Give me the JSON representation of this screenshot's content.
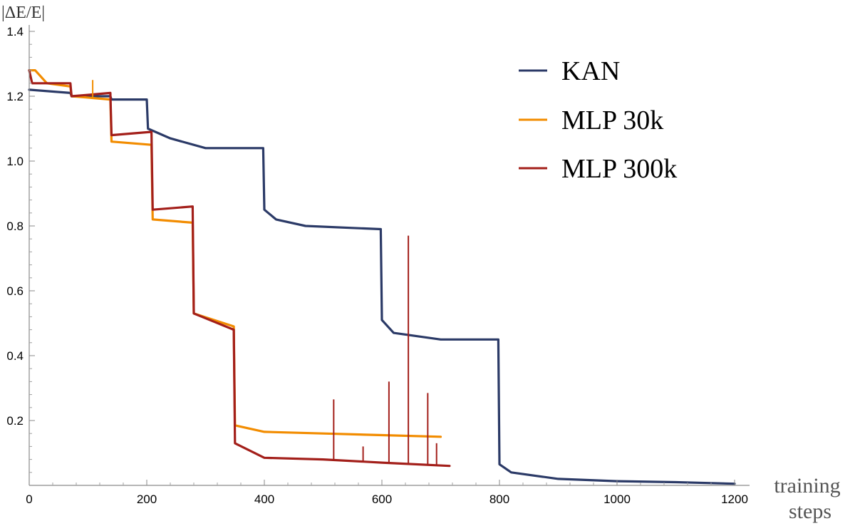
{
  "chart_data": {
    "type": "line",
    "title": "",
    "xlabel_line1": "training",
    "xlabel_line2": "steps",
    "ylabel": "|ΔE/E|",
    "xlim": [
      0,
      1200
    ],
    "ylim": [
      0,
      1.4
    ],
    "x_ticks": [
      0,
      200,
      400,
      600,
      800,
      1000,
      1200
    ],
    "y_ticks": [
      0.2,
      0.4,
      0.6,
      0.8,
      1.0,
      1.2,
      1.4
    ],
    "y_tick_labels": [
      "0.2",
      "0.4",
      "0.6",
      "0.8",
      "1.0",
      "1.2",
      "1.4"
    ],
    "grid": false,
    "legend_position": "top-right",
    "series": [
      {
        "name": "KAN",
        "color": "#2b3a67",
        "points": [
          [
            0,
            1.22
          ],
          [
            70,
            1.21
          ],
          [
            72,
            1.2
          ],
          [
            138,
            1.2
          ],
          [
            140,
            1.19
          ],
          [
            200,
            1.19
          ],
          [
            202,
            1.1
          ],
          [
            240,
            1.07
          ],
          [
            300,
            1.04
          ],
          [
            398,
            1.04
          ],
          [
            400,
            0.85
          ],
          [
            420,
            0.82
          ],
          [
            470,
            0.8
          ],
          [
            598,
            0.79
          ],
          [
            600,
            0.51
          ],
          [
            620,
            0.47
          ],
          [
            700,
            0.45
          ],
          [
            798,
            0.45
          ],
          [
            800,
            0.065
          ],
          [
            820,
            0.04
          ],
          [
            900,
            0.02
          ],
          [
            1000,
            0.013
          ],
          [
            1100,
            0.01
          ],
          [
            1200,
            0.005
          ]
        ]
      },
      {
        "name": "MLP 30k",
        "color": "#f28c00",
        "points": [
          [
            0,
            1.28
          ],
          [
            10,
            1.28
          ],
          [
            30,
            1.24
          ],
          [
            70,
            1.23
          ],
          [
            72,
            1.2
          ],
          [
            138,
            1.19
          ],
          [
            140,
            1.06
          ],
          [
            208,
            1.05
          ],
          [
            210,
            0.82
          ],
          [
            278,
            0.81
          ],
          [
            280,
            0.53
          ],
          [
            348,
            0.49
          ],
          [
            350,
            0.185
          ],
          [
            400,
            0.165
          ],
          [
            500,
            0.16
          ],
          [
            600,
            0.155
          ],
          [
            700,
            0.15
          ]
        ]
      },
      {
        "name": "MLP 300k",
        "color": "#a31f1a",
        "points": [
          [
            0,
            1.28
          ],
          [
            5,
            1.24
          ],
          [
            70,
            1.24
          ],
          [
            72,
            1.2
          ],
          [
            138,
            1.21
          ],
          [
            140,
            1.08
          ],
          [
            208,
            1.09
          ],
          [
            210,
            0.85
          ],
          [
            278,
            0.86
          ],
          [
            280,
            0.53
          ],
          [
            348,
            0.48
          ],
          [
            350,
            0.13
          ],
          [
            400,
            0.085
          ],
          [
            500,
            0.08
          ],
          [
            600,
            0.07
          ],
          [
            715,
            0.06
          ]
        ]
      }
    ],
    "spikes": [
      {
        "series": "MLP 30k",
        "x": 108,
        "y": 1.25
      },
      {
        "series": "MLP 300k",
        "x": 518,
        "y": 0.265
      },
      {
        "series": "MLP 300k",
        "x": 612,
        "y": 0.32
      },
      {
        "series": "MLP 300k",
        "x": 645,
        "y": 0.77
      },
      {
        "series": "MLP 300k",
        "x": 678,
        "y": 0.285
      },
      {
        "series": "MLP 300k",
        "x": 568,
        "y": 0.12
      },
      {
        "series": "MLP 300k",
        "x": 693,
        "y": 0.13
      }
    ]
  }
}
